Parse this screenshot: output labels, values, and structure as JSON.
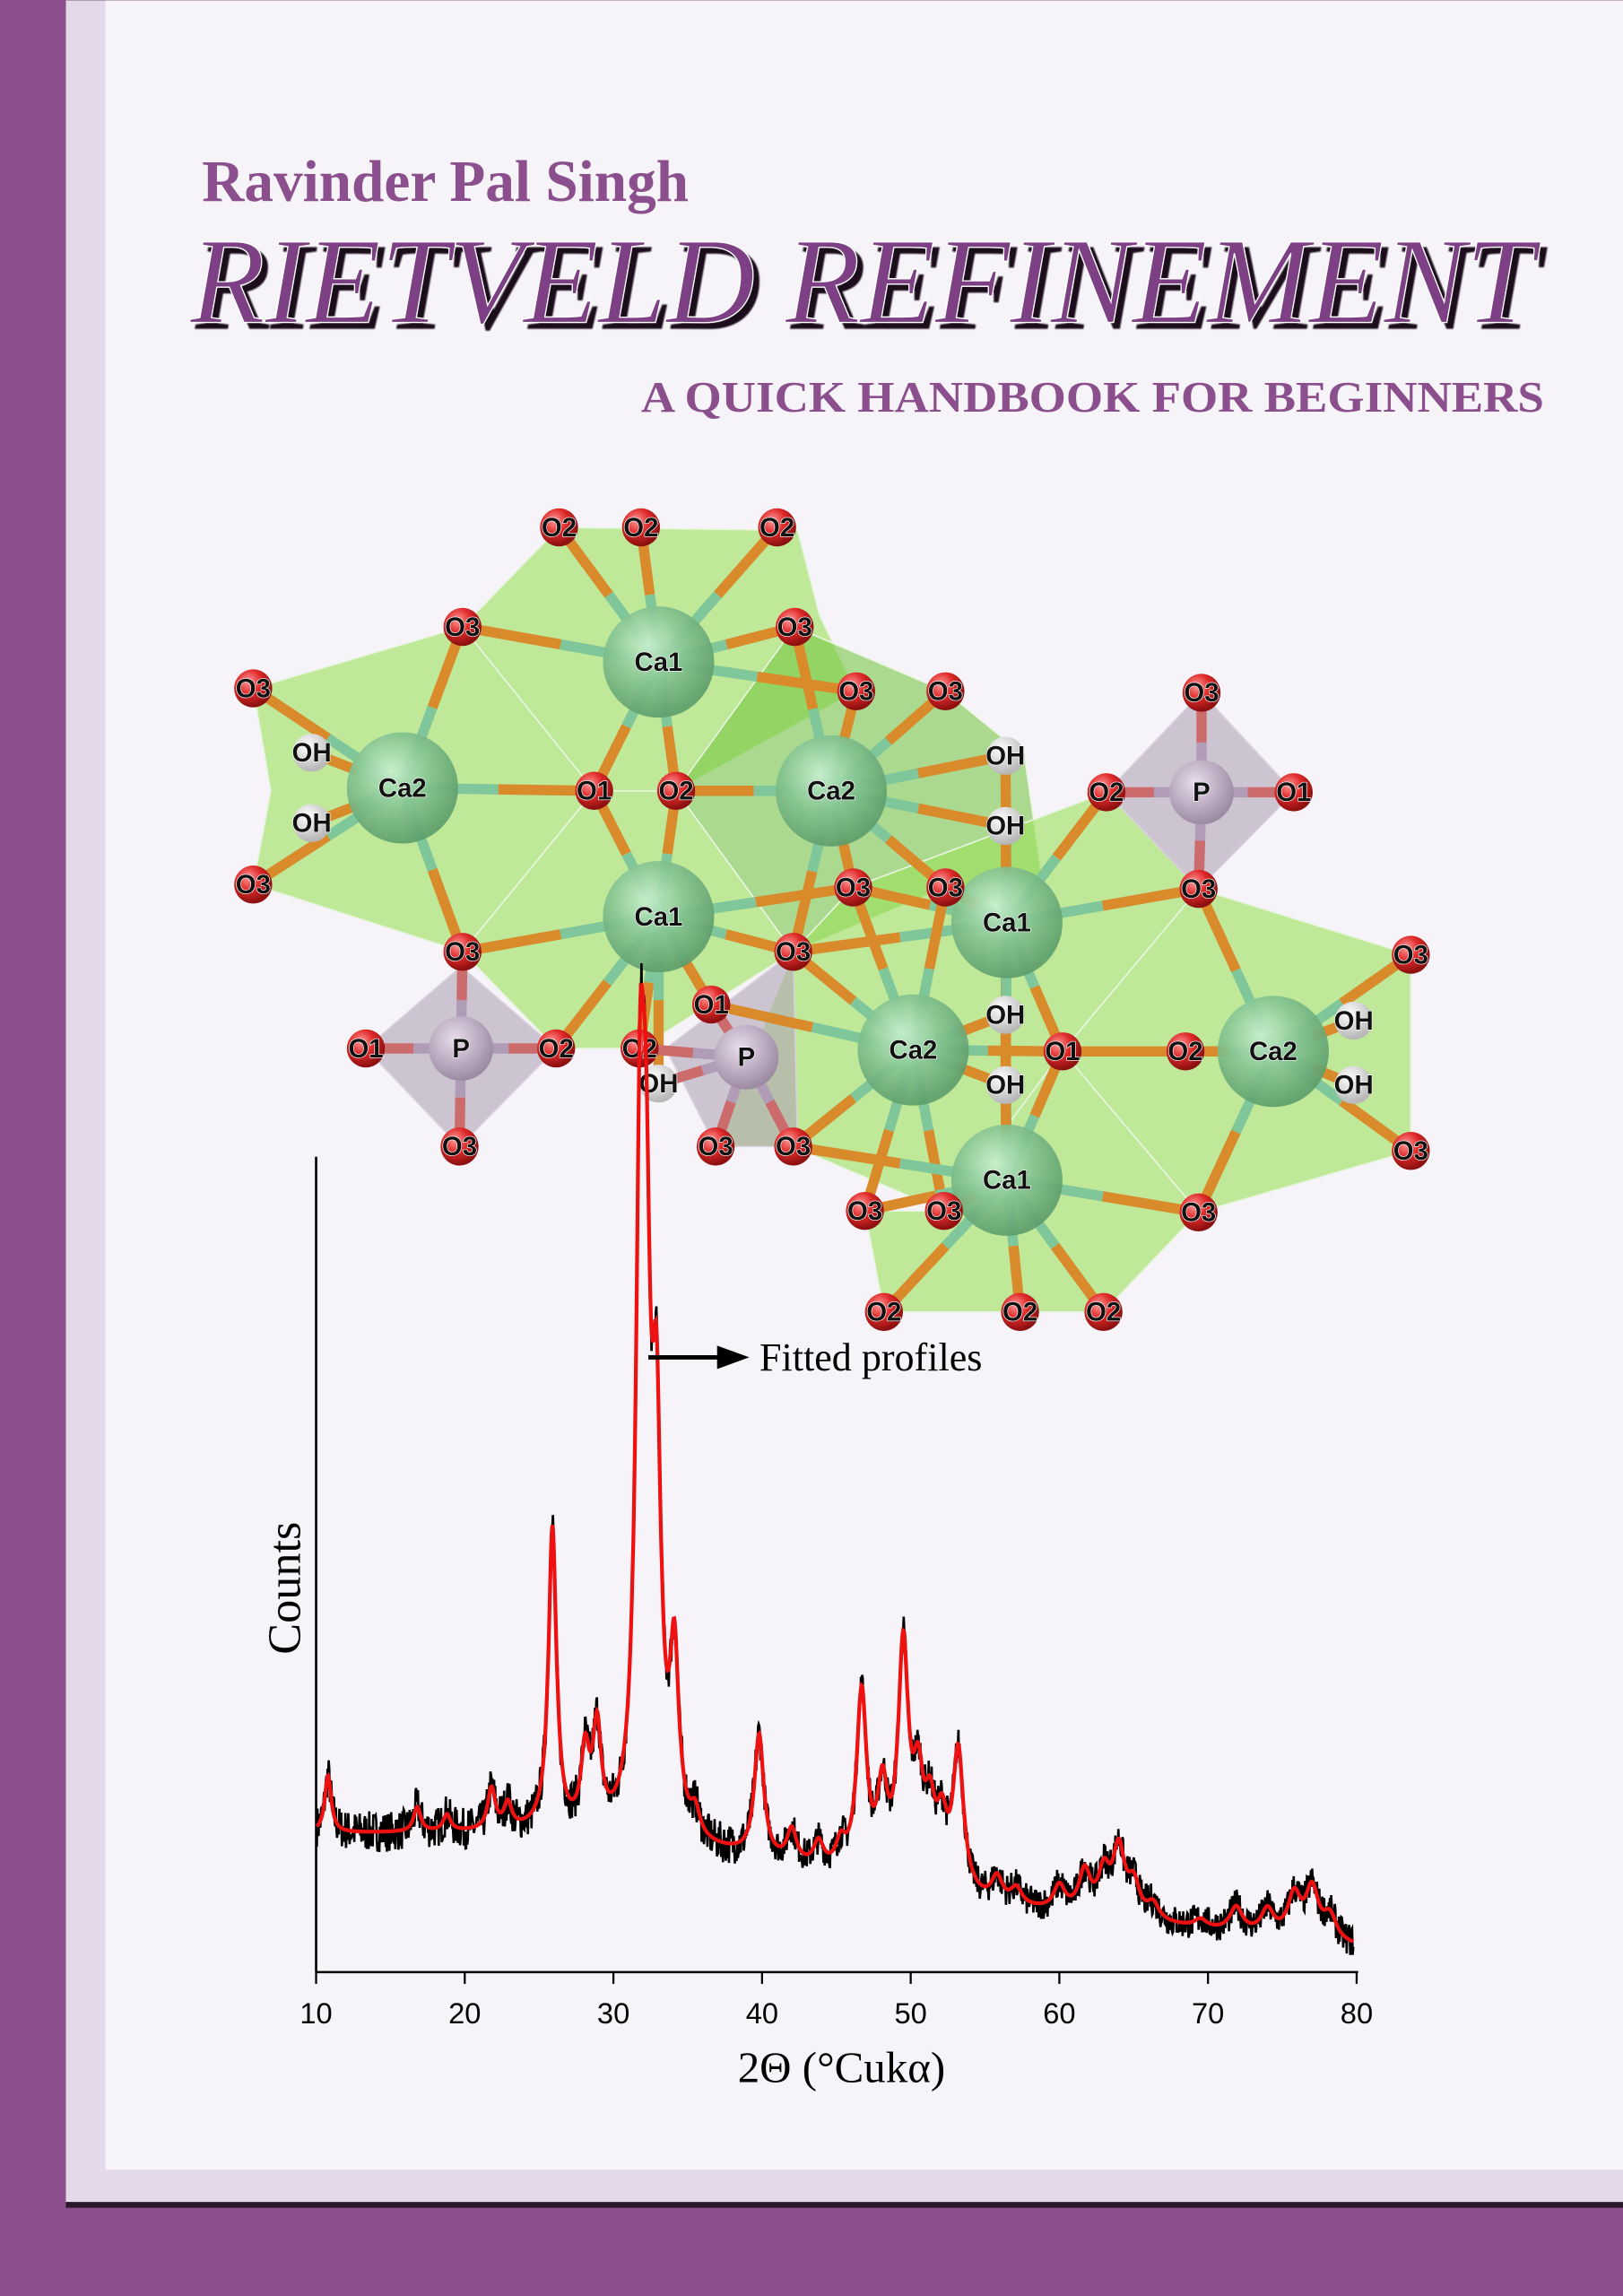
{
  "cover": {
    "author": "Ravinder Pal Singh",
    "title": "RIETVELD REFINEMENT",
    "subtitle": "A QUICK HANDBOOK FOR BEGINNERS",
    "colors": {
      "frame": "#8a4f8c",
      "title": "#7d3f85",
      "page": "#f6f4f8",
      "spine_strip": "#e4d9e8"
    }
  },
  "structure": {
    "atoms": [
      "O2",
      "O2",
      "O2",
      "O3",
      "Ca1",
      "O3",
      "O3",
      "O3",
      "O3",
      "O3",
      "OH",
      "Ca2",
      "O1",
      "O2",
      "Ca2",
      "OH",
      "O2",
      "P",
      "O1",
      "OH",
      "OH",
      "O3",
      "O3",
      "O3",
      "Ca1",
      "O3",
      "Ca1",
      "O3",
      "O3",
      "O3",
      "O1",
      "P",
      "O2",
      "O2",
      "O1",
      "P",
      "Ca2",
      "O1",
      "Ca2",
      "O2",
      "OH",
      "OH",
      "OH",
      "OH",
      "OH",
      "O3",
      "O3",
      "O3",
      "O3",
      "Ca1",
      "O3",
      "O3",
      "O3",
      "O2",
      "O2",
      "O2"
    ],
    "colors": {
      "polyhedra": "#9be05a",
      "ca": "#7fbf88",
      "p": "#b3a3b8",
      "o": "#d8292c",
      "bond_o": "#d98a2b",
      "bond_ca": "#7fc79a"
    }
  },
  "chart_data": {
    "type": "line",
    "xlabel": "2Θ (°Cukα)",
    "ylabel": "Counts",
    "xlim": [
      10,
      80
    ],
    "xticks": [
      "10",
      "20",
      "30",
      "40",
      "50",
      "60",
      "70",
      "80"
    ],
    "y_tick_labels": false,
    "grid": false,
    "annotation": "Fitted profiles",
    "series_colors": {
      "observed": "#000000",
      "fitted": "#ee1111"
    },
    "background": [
      [
        10,
        17
      ],
      [
        25,
        17
      ],
      [
        38,
        14
      ],
      [
        55,
        8
      ],
      [
        70,
        5
      ],
      [
        80,
        3
      ]
    ],
    "peaks": [
      [
        10.8,
        7
      ],
      [
        16.8,
        3
      ],
      [
        18.8,
        2
      ],
      [
        21.8,
        5
      ],
      [
        22.9,
        3
      ],
      [
        25.9,
        37
      ],
      [
        28.1,
        9
      ],
      [
        28.9,
        12
      ],
      [
        31.8,
        74
      ],
      [
        32.2,
        55
      ],
      [
        32.9,
        44
      ],
      [
        34.1,
        21
      ],
      [
        35.5,
        3
      ],
      [
        39.8,
        15
      ],
      [
        42.0,
        4
      ],
      [
        43.8,
        3
      ],
      [
        45.3,
        3
      ],
      [
        46.7,
        22
      ],
      [
        48.1,
        10
      ],
      [
        49.5,
        28
      ],
      [
        50.5,
        11
      ],
      [
        51.3,
        8
      ],
      [
        52.1,
        7
      ],
      [
        53.2,
        17
      ],
      [
        55.8,
        3
      ],
      [
        57.1,
        2
      ],
      [
        60.0,
        3
      ],
      [
        61.7,
        5
      ],
      [
        63.0,
        5
      ],
      [
        64.0,
        8
      ],
      [
        65.0,
        4
      ],
      [
        66.3,
        2
      ],
      [
        69.5,
        1
      ],
      [
        71.9,
        3
      ],
      [
        74.0,
        3
      ],
      [
        75.8,
        5
      ],
      [
        77.0,
        6
      ],
      [
        78.2,
        3
      ]
    ]
  }
}
